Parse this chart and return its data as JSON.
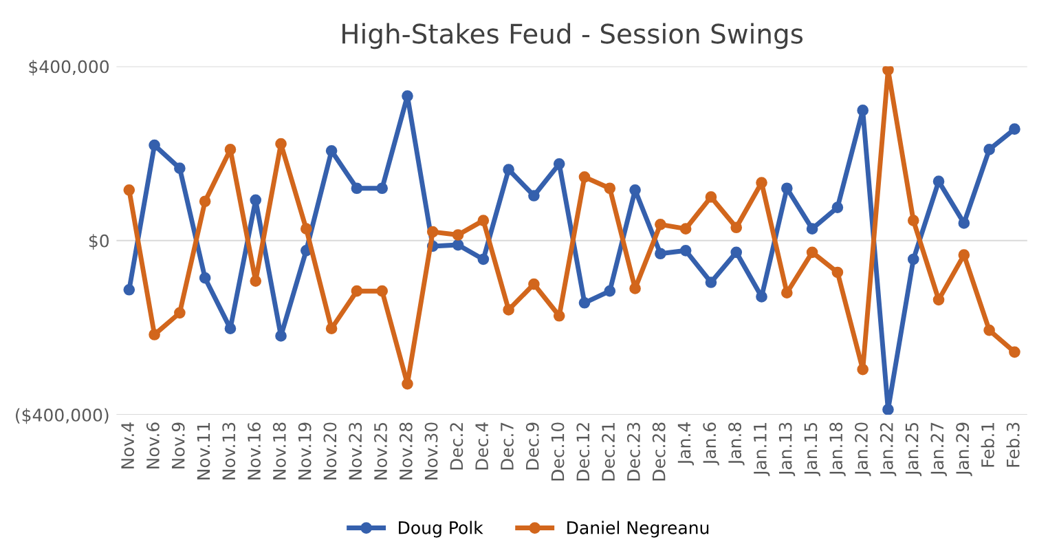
{
  "chart_data": {
    "type": "line",
    "title": "High-Stakes Feud - Session Swings",
    "categories": [
      "Nov.4",
      "Nov.6",
      "Nov.9",
      "Nov.11",
      "Nov.13",
      "Nov.16",
      "Nov.18",
      "Nov.19",
      "Nov.20",
      "Nov.23",
      "Nov.25",
      "Nov.28",
      "Nov.30",
      "Dec.2",
      "Dec.4",
      "Dec.7",
      "Dec.9",
      "Dec.10",
      "Dec.12",
      "Dec.21",
      "Dec.23",
      "Dec.28",
      "Jan.4",
      "Jan.6",
      "Jan.8",
      "Jan.11",
      "Jan.13",
      "Jan.15",
      "Jan.18",
      "Jan.20",
      "Jan.22",
      "Jan.25",
      "Jan.27",
      "Jan.29",
      "Feb.1",
      "Feb.3"
    ],
    "series": [
      {
        "name": "Doug Polk",
        "color": "#3560ad",
        "values": [
          -113000,
          219000,
          166000,
          -86000,
          -202000,
          93000,
          -219000,
          -23000,
          206000,
          120000,
          120000,
          332000,
          -13000,
          -10000,
          -43000,
          163000,
          103000,
          176000,
          -143000,
          -116000,
          116000,
          -30000,
          -23000,
          -96000,
          -27000,
          -129000,
          120000,
          27000,
          76000,
          299000,
          -388000,
          -43000,
          136000,
          40000,
          209000,
          256000
        ]
      },
      {
        "name": "Daniel Negreanu",
        "color": "#d2661c",
        "values": [
          116000,
          -216000,
          -166000,
          90000,
          209000,
          -93000,
          222000,
          27000,
          -202000,
          -116000,
          -116000,
          -329000,
          20000,
          13000,
          46000,
          -159000,
          -100000,
          -173000,
          146000,
          120000,
          -110000,
          37000,
          27000,
          100000,
          30000,
          133000,
          -120000,
          -27000,
          -73000,
          -296000,
          392000,
          46000,
          -136000,
          -33000,
          -206000,
          -256000
        ]
      }
    ],
    "ylim": [
      -400000,
      400000
    ],
    "yticks": [
      {
        "value": -400000,
        "label": "($400,000)"
      },
      {
        "value": 0,
        "label": "$0"
      },
      {
        "value": 400000,
        "label": "$400,000"
      }
    ],
    "grid": "y",
    "legend": "bottom",
    "marker": "circle",
    "line_style": "solid"
  }
}
